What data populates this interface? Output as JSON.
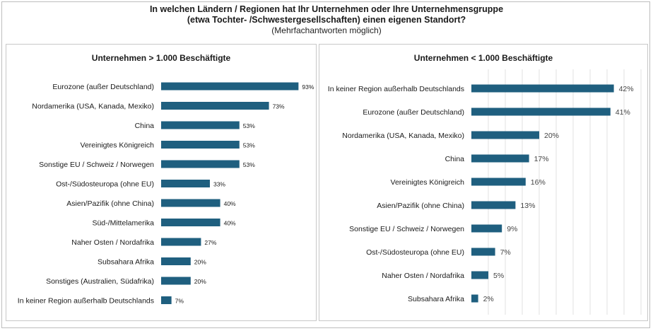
{
  "header": {
    "title_line1": "In welchen Ländern / Regionen hat Ihr Unternehmen oder Ihre Unternehmensgruppe",
    "title_line2": "(etwa Tochter- /Schwestergesellschaften) einen eigenen Standort?",
    "subtitle": "(Mehrfachantworten möglich)"
  },
  "chart_data": [
    {
      "type": "bar",
      "orientation": "horizontal",
      "title": "Unternehmen > 1.000 Beschäftigte",
      "categories": [
        "Eurozone (außer Deutschland)",
        "Nordamerika (USA, Kanada, Mexiko)",
        "China",
        "Vereinigtes Königreich",
        "Sonstige EU / Schweiz / Norwegen",
        "Ost-/Südosteuropa (ohne EU)",
        "Asien/Pazifik (ohne China)",
        "Süd-/Mittelamerika",
        "Naher Osten / Nordafrika",
        "Subsahara Afrika",
        "Sonstiges (Australien, Südafrika)",
        "In keiner Region außerhalb Deutschlands"
      ],
      "values": [
        93,
        73,
        53,
        53,
        53,
        33,
        40,
        40,
        27,
        20,
        20,
        7
      ],
      "value_labels": [
        "93%",
        "73%",
        "53%",
        "53%",
        "53%",
        "33%",
        "40%",
        "40%",
        "27%",
        "20%",
        "20%",
        "7%"
      ],
      "unit": "%",
      "xlim": [
        0,
        100
      ],
      "color": "#1f5f7f"
    },
    {
      "type": "bar",
      "orientation": "horizontal",
      "title": "Unternehmen < 1.000 Beschäftigte",
      "categories": [
        "In keiner Region außerhalb Deutschlands",
        "Eurozone (außer Deutschland)",
        "Nordamerika (USA, Kanada, Mexiko)",
        "China",
        "Vereinigtes Königreich",
        "Asien/Pazifik (ohne China)",
        "Sonstige EU / Schweiz / Norwegen",
        "Ost-/Südosteuropa (ohne EU)",
        "Naher Osten / Nordafrika",
        "Subsahara Afrika"
      ],
      "values": [
        42,
        41,
        20,
        17,
        16,
        13,
        9,
        7,
        5,
        2
      ],
      "value_labels": [
        "42%",
        "41%",
        "20%",
        "17%",
        "16%",
        "13%",
        "9%",
        "7%",
        "5%",
        "2%"
      ],
      "unit": "%",
      "xlim": [
        0,
        50
      ],
      "grid": true,
      "color": "#1f5f7f"
    }
  ]
}
